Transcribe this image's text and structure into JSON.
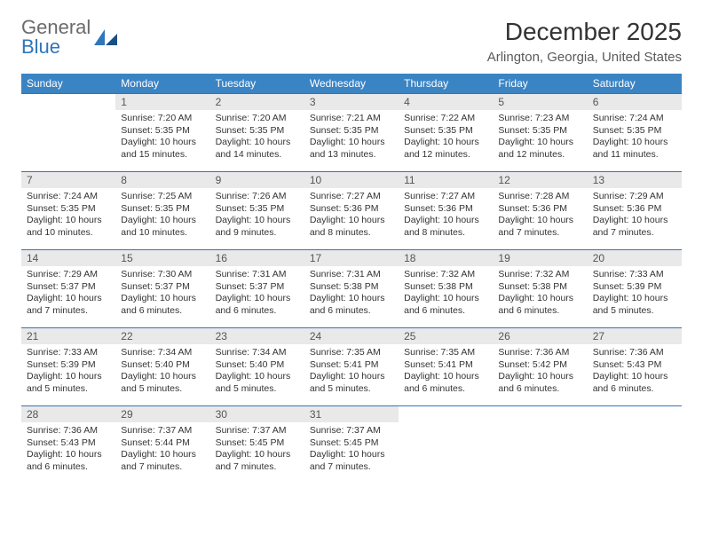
{
  "brand": {
    "word1": "General",
    "word2": "Blue"
  },
  "title": "December 2025",
  "location": "Arlington, Georgia, United States",
  "colors": {
    "header_bg": "#3b84c4",
    "rule": "#2f76bb",
    "daynum_bg": "#e9e9e9",
    "text": "#333333"
  },
  "font": {
    "title_size": 28,
    "location_size": 15,
    "header_size": 12,
    "cell_size": 10.5
  },
  "day_headers": [
    "Sunday",
    "Monday",
    "Tuesday",
    "Wednesday",
    "Thursday",
    "Friday",
    "Saturday"
  ],
  "weeks": [
    [
      {
        "day": "",
        "lines": []
      },
      {
        "day": "1",
        "lines": [
          "Sunrise: 7:20 AM",
          "Sunset: 5:35 PM",
          "Daylight: 10 hours and 15 minutes."
        ]
      },
      {
        "day": "2",
        "lines": [
          "Sunrise: 7:20 AM",
          "Sunset: 5:35 PM",
          "Daylight: 10 hours and 14 minutes."
        ]
      },
      {
        "day": "3",
        "lines": [
          "Sunrise: 7:21 AM",
          "Sunset: 5:35 PM",
          "Daylight: 10 hours and 13 minutes."
        ]
      },
      {
        "day": "4",
        "lines": [
          "Sunrise: 7:22 AM",
          "Sunset: 5:35 PM",
          "Daylight: 10 hours and 12 minutes."
        ]
      },
      {
        "day": "5",
        "lines": [
          "Sunrise: 7:23 AM",
          "Sunset: 5:35 PM",
          "Daylight: 10 hours and 12 minutes."
        ]
      },
      {
        "day": "6",
        "lines": [
          "Sunrise: 7:24 AM",
          "Sunset: 5:35 PM",
          "Daylight: 10 hours and 11 minutes."
        ]
      }
    ],
    [
      {
        "day": "7",
        "lines": [
          "Sunrise: 7:24 AM",
          "Sunset: 5:35 PM",
          "Daylight: 10 hours and 10 minutes."
        ]
      },
      {
        "day": "8",
        "lines": [
          "Sunrise: 7:25 AM",
          "Sunset: 5:35 PM",
          "Daylight: 10 hours and 10 minutes."
        ]
      },
      {
        "day": "9",
        "lines": [
          "Sunrise: 7:26 AM",
          "Sunset: 5:35 PM",
          "Daylight: 10 hours and 9 minutes."
        ]
      },
      {
        "day": "10",
        "lines": [
          "Sunrise: 7:27 AM",
          "Sunset: 5:36 PM",
          "Daylight: 10 hours and 8 minutes."
        ]
      },
      {
        "day": "11",
        "lines": [
          "Sunrise: 7:27 AM",
          "Sunset: 5:36 PM",
          "Daylight: 10 hours and 8 minutes."
        ]
      },
      {
        "day": "12",
        "lines": [
          "Sunrise: 7:28 AM",
          "Sunset: 5:36 PM",
          "Daylight: 10 hours and 7 minutes."
        ]
      },
      {
        "day": "13",
        "lines": [
          "Sunrise: 7:29 AM",
          "Sunset: 5:36 PM",
          "Daylight: 10 hours and 7 minutes."
        ]
      }
    ],
    [
      {
        "day": "14",
        "lines": [
          "Sunrise: 7:29 AM",
          "Sunset: 5:37 PM",
          "Daylight: 10 hours and 7 minutes."
        ]
      },
      {
        "day": "15",
        "lines": [
          "Sunrise: 7:30 AM",
          "Sunset: 5:37 PM",
          "Daylight: 10 hours and 6 minutes."
        ]
      },
      {
        "day": "16",
        "lines": [
          "Sunrise: 7:31 AM",
          "Sunset: 5:37 PM",
          "Daylight: 10 hours and 6 minutes."
        ]
      },
      {
        "day": "17",
        "lines": [
          "Sunrise: 7:31 AM",
          "Sunset: 5:38 PM",
          "Daylight: 10 hours and 6 minutes."
        ]
      },
      {
        "day": "18",
        "lines": [
          "Sunrise: 7:32 AM",
          "Sunset: 5:38 PM",
          "Daylight: 10 hours and 6 minutes."
        ]
      },
      {
        "day": "19",
        "lines": [
          "Sunrise: 7:32 AM",
          "Sunset: 5:38 PM",
          "Daylight: 10 hours and 6 minutes."
        ]
      },
      {
        "day": "20",
        "lines": [
          "Sunrise: 7:33 AM",
          "Sunset: 5:39 PM",
          "Daylight: 10 hours and 5 minutes."
        ]
      }
    ],
    [
      {
        "day": "21",
        "lines": [
          "Sunrise: 7:33 AM",
          "Sunset: 5:39 PM",
          "Daylight: 10 hours and 5 minutes."
        ]
      },
      {
        "day": "22",
        "lines": [
          "Sunrise: 7:34 AM",
          "Sunset: 5:40 PM",
          "Daylight: 10 hours and 5 minutes."
        ]
      },
      {
        "day": "23",
        "lines": [
          "Sunrise: 7:34 AM",
          "Sunset: 5:40 PM",
          "Daylight: 10 hours and 5 minutes."
        ]
      },
      {
        "day": "24",
        "lines": [
          "Sunrise: 7:35 AM",
          "Sunset: 5:41 PM",
          "Daylight: 10 hours and 5 minutes."
        ]
      },
      {
        "day": "25",
        "lines": [
          "Sunrise: 7:35 AM",
          "Sunset: 5:41 PM",
          "Daylight: 10 hours and 6 minutes."
        ]
      },
      {
        "day": "26",
        "lines": [
          "Sunrise: 7:36 AM",
          "Sunset: 5:42 PM",
          "Daylight: 10 hours and 6 minutes."
        ]
      },
      {
        "day": "27",
        "lines": [
          "Sunrise: 7:36 AM",
          "Sunset: 5:43 PM",
          "Daylight: 10 hours and 6 minutes."
        ]
      }
    ],
    [
      {
        "day": "28",
        "lines": [
          "Sunrise: 7:36 AM",
          "Sunset: 5:43 PM",
          "Daylight: 10 hours and 6 minutes."
        ]
      },
      {
        "day": "29",
        "lines": [
          "Sunrise: 7:37 AM",
          "Sunset: 5:44 PM",
          "Daylight: 10 hours and 7 minutes."
        ]
      },
      {
        "day": "30",
        "lines": [
          "Sunrise: 7:37 AM",
          "Sunset: 5:45 PM",
          "Daylight: 10 hours and 7 minutes."
        ]
      },
      {
        "day": "31",
        "lines": [
          "Sunrise: 7:37 AM",
          "Sunset: 5:45 PM",
          "Daylight: 10 hours and 7 minutes."
        ]
      },
      {
        "day": "",
        "lines": []
      },
      {
        "day": "",
        "lines": []
      },
      {
        "day": "",
        "lines": []
      }
    ]
  ]
}
